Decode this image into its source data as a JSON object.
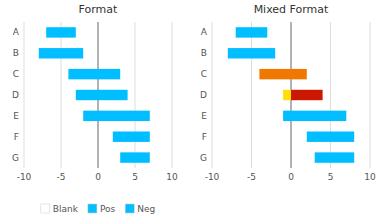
{
  "chart_data": [
    {
      "type": "bar",
      "orientation": "horizontal",
      "title": "Format",
      "categories": [
        "A",
        "B",
        "C",
        "D",
        "E",
        "F",
        "G"
      ],
      "values": [
        [
          -7,
          -3
        ],
        [
          -8,
          -2
        ],
        [
          -4,
          3
        ],
        [
          -3,
          4
        ],
        [
          -2,
          7
        ],
        [
          2,
          7
        ],
        [
          3,
          7
        ]
      ],
      "color": "#00BEFF",
      "xlim": [
        -10,
        10
      ],
      "xticks": [
        -10,
        -5,
        0,
        5,
        10
      ],
      "grid": true,
      "legend": "bottom",
      "legend_entries": [
        {
          "name": "Blank",
          "color": "#FFFFFF"
        },
        {
          "name": "Pos",
          "color": "#00BEFF"
        },
        {
          "name": "Neg",
          "color": "#00BEFF"
        }
      ]
    },
    {
      "type": "bar",
      "orientation": "horizontal",
      "title": "Mixed Format",
      "categories": [
        "A",
        "B",
        "C",
        "D",
        "E",
        "F",
        "G"
      ],
      "values": [
        [
          [
            -7,
            -3
          ]
        ],
        [
          [
            -8,
            -2
          ]
        ],
        [
          [
            -4,
            2
          ]
        ],
        [
          [
            -1,
            0
          ],
          [
            0,
            4
          ]
        ],
        [
          [
            -1,
            7
          ]
        ],
        [
          [
            2,
            8
          ]
        ],
        [
          [
            3,
            8
          ]
        ]
      ],
      "colors": [
        [
          "#00BEFF"
        ],
        [
          "#00BEFF"
        ],
        [
          "#F07800"
        ],
        [
          "#FFE000",
          "#CC1800"
        ],
        [
          "#00BEFF"
        ],
        [
          "#00BEFF"
        ],
        [
          "#00BEFF"
        ]
      ],
      "xlim": [
        -10,
        10
      ],
      "xticks": [
        -10,
        -5,
        0,
        5,
        10
      ],
      "grid": true
    }
  ]
}
